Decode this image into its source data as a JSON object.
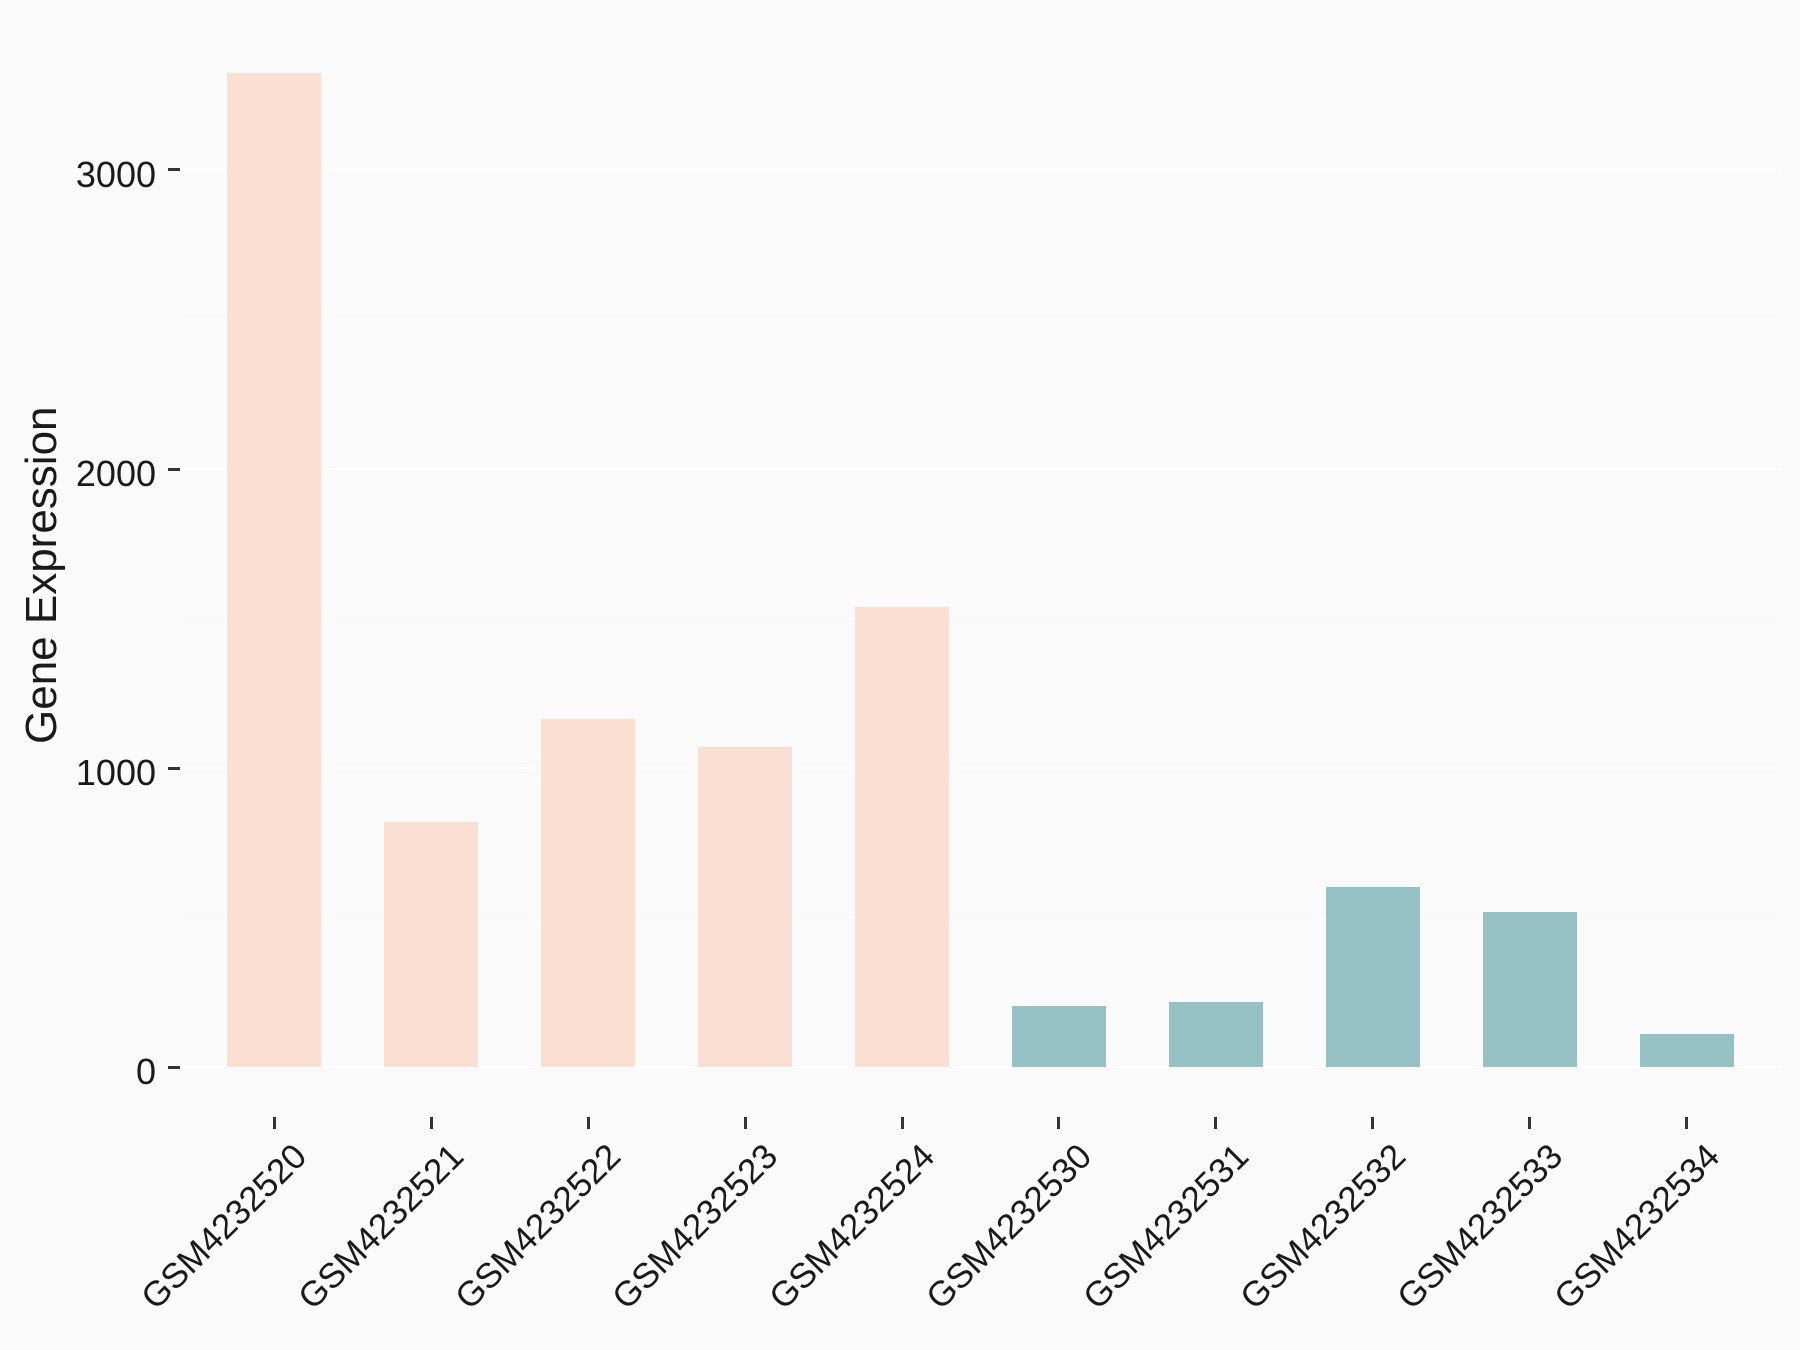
{
  "figure": {
    "background": "#FAFAFA",
    "gridline_color": "#FFFFFF",
    "axis_text_color": "#1A1A1A",
    "tick_mark_color": "#333333"
  },
  "chart_data": {
    "type": "bar",
    "title": "",
    "xlabel": "",
    "ylabel": "Gene Expression",
    "categories": [
      "GSM4232520",
      "GSM4232521",
      "GSM4232522",
      "GSM4232523",
      "GSM4232524",
      "GSM4232530",
      "GSM4232531",
      "GSM4232532",
      "GSM4232533",
      "GSM4232534"
    ],
    "values": [
      3325,
      820,
      1165,
      1070,
      1540,
      205,
      218,
      602,
      520,
      112
    ],
    "bar_colors": [
      "#FCDFD3",
      "#FCDFD3",
      "#FCDFD3",
      "#FCDFD3",
      "#FCDFD3",
      "#96C2C6",
      "#96C2C6",
      "#96C2C6",
      "#96C2C6",
      "#96C2C6"
    ],
    "group_colors": {
      "peach": "#FCDFD3",
      "teal": "#96C2C6"
    },
    "ylim": [
      -166,
      3488
    ],
    "y_major_ticks": [
      0,
      1000,
      2000,
      3000
    ],
    "y_tick_labels": [
      "0",
      "1000",
      "2000",
      "3000"
    ],
    "y_minor_gridlines": [
      500,
      1500,
      2500
    ],
    "grid": "white major+minor horizontal gridlines on light gray panel",
    "legend": "none",
    "bar_width_fraction": 0.6,
    "x_tick_label_rotation_deg": 45
  }
}
